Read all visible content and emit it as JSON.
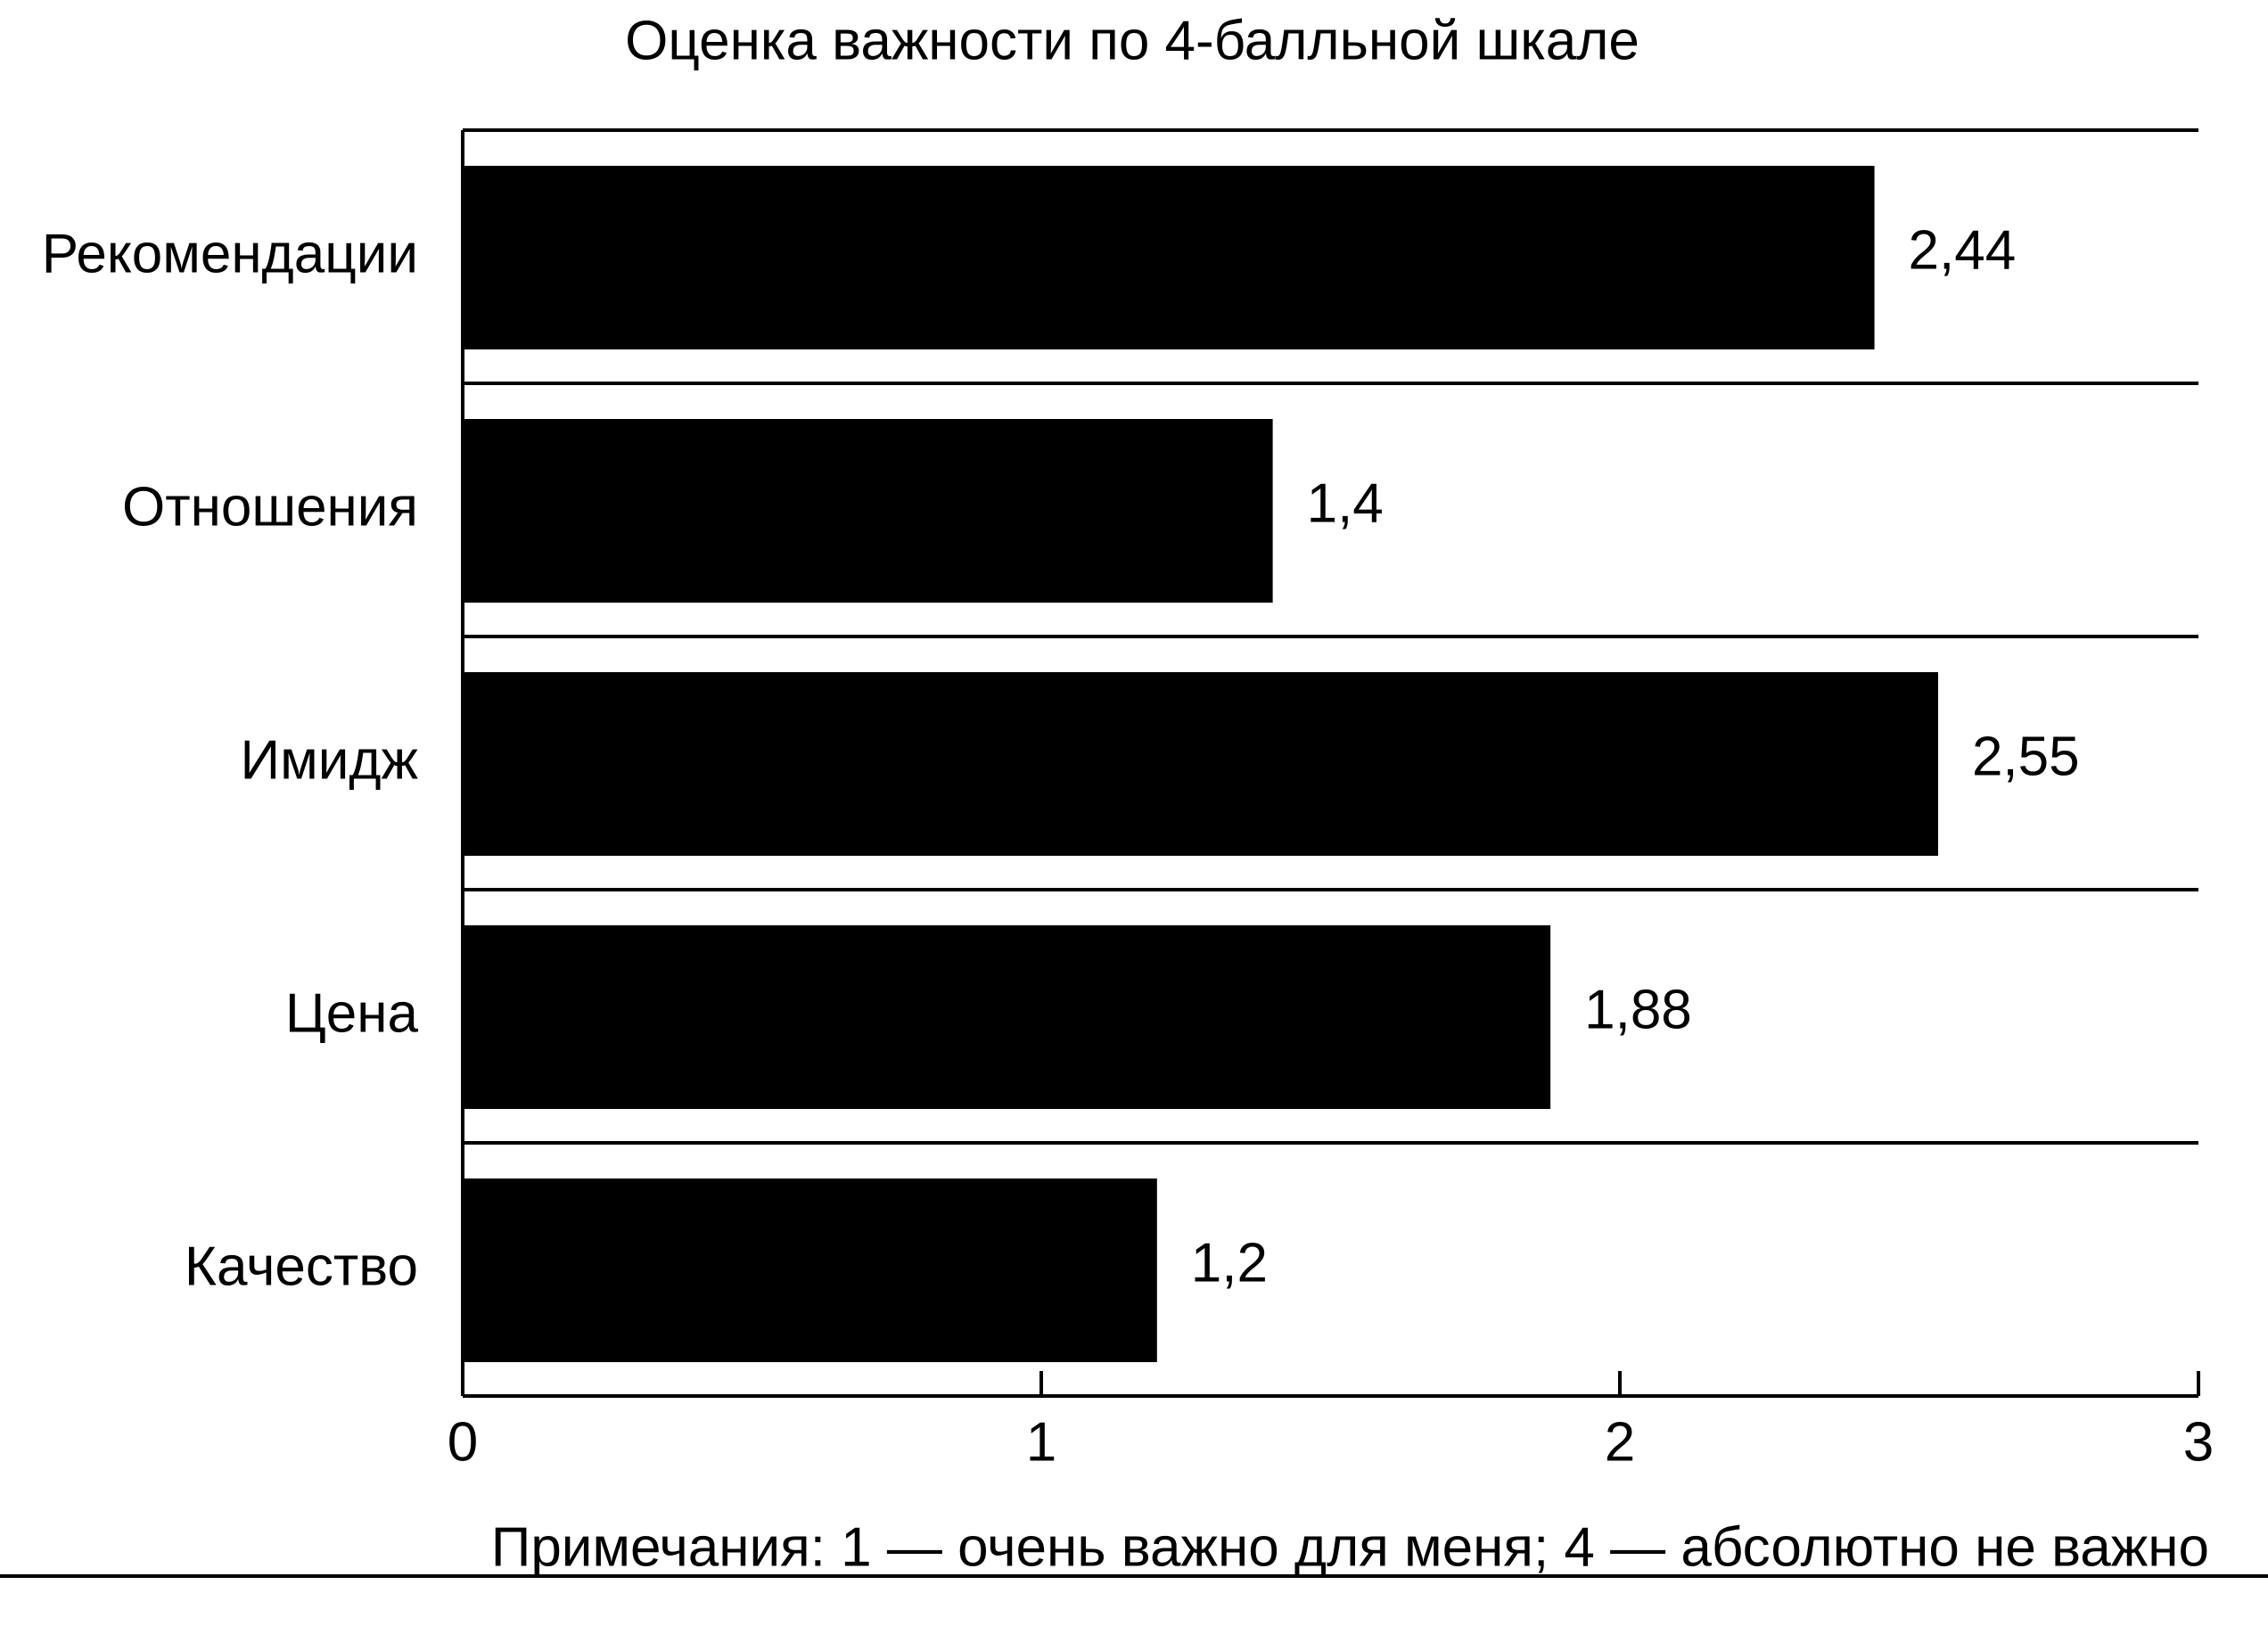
{
  "chart_data": {
    "type": "bar",
    "orientation": "horizontal",
    "title": "Оценка важности по 4-балльной шкале",
    "categories": [
      "Рекомендации",
      "Отношения",
      "Имидж",
      "Цена",
      "Качество"
    ],
    "values": [
      2.44,
      1.4,
      2.55,
      1.88,
      1.2
    ],
    "value_labels": [
      "2,44",
      "1,4",
      "2,55",
      "1,88",
      "1,2"
    ],
    "color": "#000000",
    "xlim": [
      0,
      3
    ],
    "xticks": [
      0,
      1,
      2,
      3
    ],
    "note": "Примечания: 1 — очень важно для меня;  4 — абсолютно не важно"
  }
}
